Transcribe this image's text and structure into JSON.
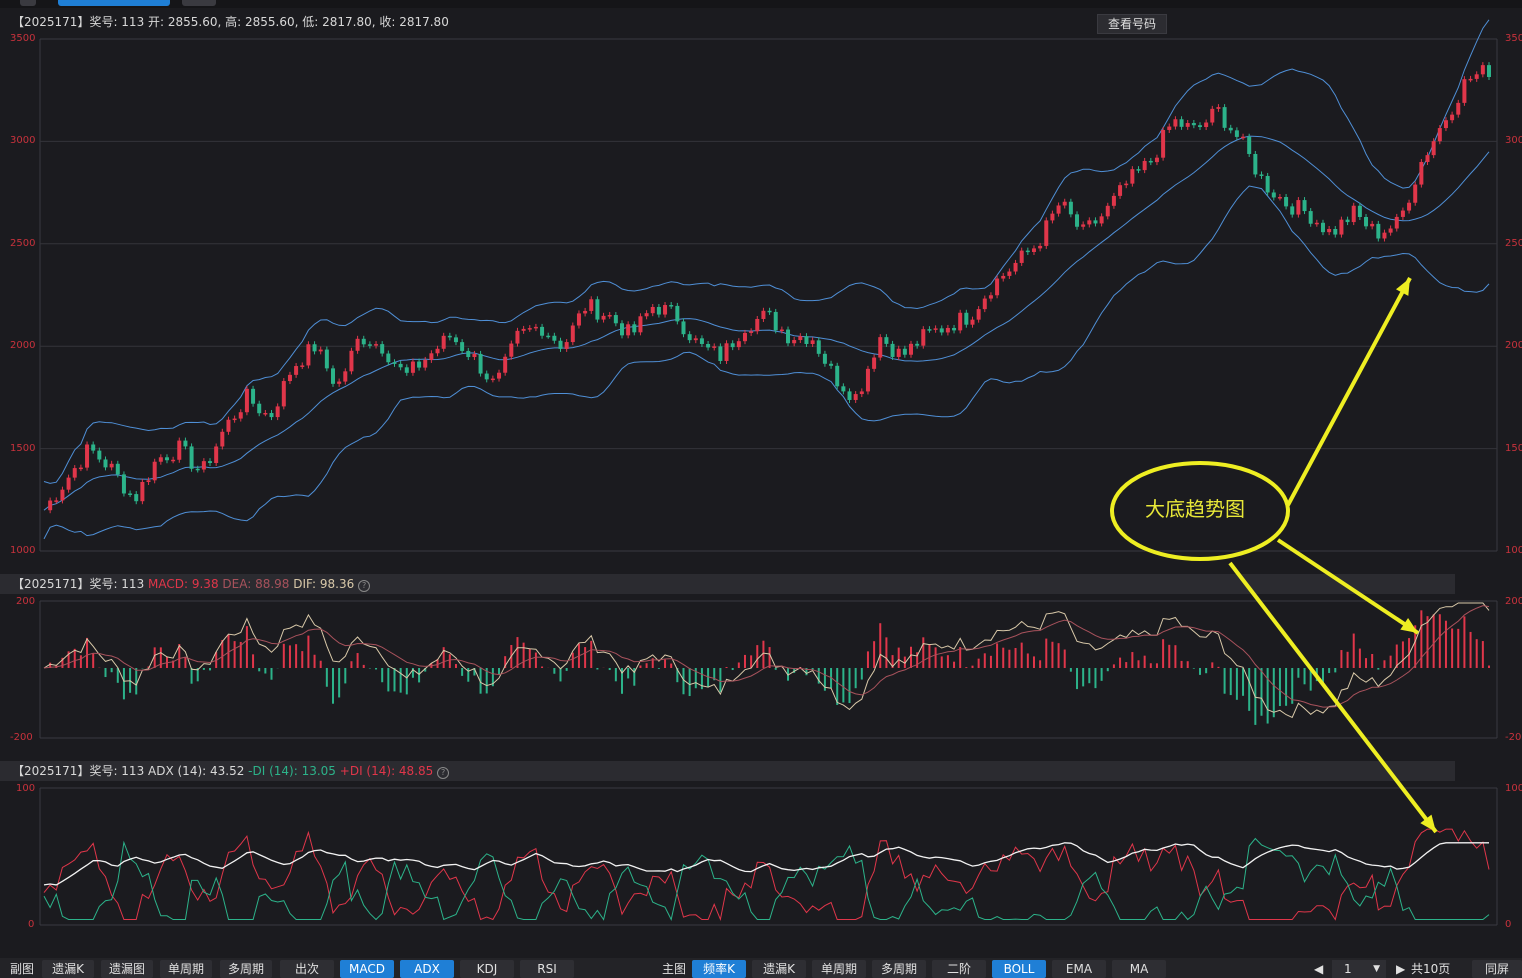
{
  "colors": {
    "up": "#e0364a",
    "down": "#2cb38a",
    "boll": "#4f8fd6",
    "accent": "#1f7fd6",
    "annotation": "#eeee22"
  },
  "main": {
    "header": "【2025171】奖号: 113  开: 2855.60, 高: 2855.60, 低: 2817.80, 收: 2817.80",
    "view_button": "查看号码",
    "yticks": [
      "3500",
      "3000",
      "2500",
      "2000",
      "1500",
      "1000"
    ],
    "yticks_right": [
      "350",
      "300",
      "250",
      "200",
      "150",
      "100"
    ]
  },
  "macd_panel": {
    "prefix": "【2025171】奖号: 113 ",
    "macd": "MACD: 9.38",
    "dea": "DEA: 88.98",
    "dif": "DIF: 98.36",
    "yticks": [
      "200",
      "-200"
    ],
    "yticks_right": [
      "200",
      "-20"
    ]
  },
  "adx_panel": {
    "prefix": "【2025171】奖号: 113 ADX (14): 43.52 ",
    "mdi": "-DI (14): 13.05",
    "pdi": "+DI (14): 48.85",
    "yticks": [
      "100",
      "0"
    ],
    "yticks_right": [
      "100",
      "0"
    ]
  },
  "annotation": {
    "label": "大底趋势图"
  },
  "bottom": {
    "sub_label": "副图",
    "sub_buttons": [
      "遗漏K",
      "遗漏图",
      "单周期",
      "多周期",
      "出次",
      "MACD",
      "ADX",
      "KDJ",
      "RSI"
    ],
    "main_label": "主图",
    "main_buttons": [
      "频率K",
      "遗漏K",
      "单周期",
      "多周期",
      "二阶",
      "BOLL",
      "EMA",
      "MA"
    ],
    "page_value": "1",
    "page_total": "共10页",
    "sync": "同屏"
  },
  "chart_data": {
    "type": "candlestick",
    "ylim": [
      1000,
      3500
    ],
    "close_path": [
      1200,
      1350,
      1500,
      1400,
      1250,
      1450,
      1500,
      1380,
      1600,
      1750,
      1650,
      1900,
      2000,
      1800,
      2050,
      2000,
      1850,
      1950,
      2050,
      1950,
      1800,
      2050,
      2100,
      2000,
      2200,
      2150,
      2050,
      2200,
      2150,
      2000,
      1950,
      2100,
      2150,
      2050,
      2050,
      1850,
      1750,
      2050,
      1950,
      2050,
      2100,
      2150,
      2300,
      2400,
      2500,
      2700,
      2550,
      2650,
      2800,
      2900,
      3100,
      3050,
      3150,
      3000,
      2800,
      2700,
      2650,
      2550,
      2650,
      2550,
      2600,
      2900,
      3100,
      3300,
      3350
    ]
  }
}
